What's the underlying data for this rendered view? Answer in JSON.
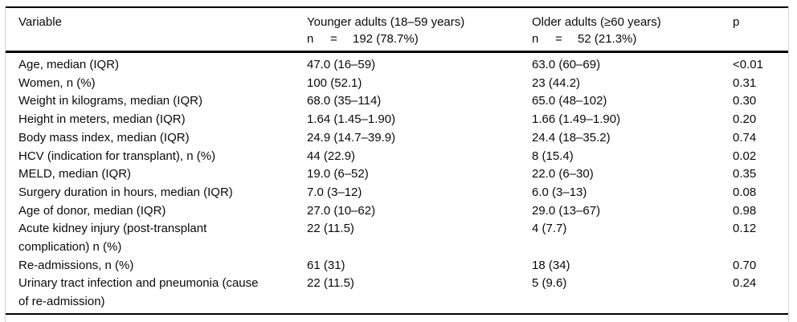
{
  "page": {
    "background_color": "#ffffff",
    "rule_color": "#000000",
    "frame_edge_color": "#d4d4d4",
    "text_color": "#0a0a0a"
  },
  "table": {
    "header": {
      "variable_label": "Variable",
      "younger": {
        "label": "Younger adults (18–59 years)",
        "n_label": "n",
        "equals": "=",
        "n_value": "192 (78.7%)"
      },
      "older": {
        "label": "Older adults (≥60 years)",
        "n_label": "n",
        "equals": "=",
        "n_value": "52 (21.3%)"
      },
      "p_label": "p"
    },
    "rows": [
      {
        "variable": "Age, median (IQR)",
        "younger": "47.0 (16–59)",
        "older": "63.0 (60–69)",
        "p": "<0.01"
      },
      {
        "variable": "Women, n (%)",
        "younger": "100 (52.1)",
        "older": "23 (44.2)",
        "p": "0.31"
      },
      {
        "variable": "Weight in kilograms, median (IQR)",
        "younger": "68.0 (35–114)",
        "older": "65.0 (48–102)",
        "p": "0.30"
      },
      {
        "variable": "Height in meters, median (IQR)",
        "younger": "1.64 (1.45–1.90)",
        "older": "1.66 (1.49–1.90)",
        "p": "0.20"
      },
      {
        "variable": "Body mass index, median (IQR)",
        "younger": "24.9 (14.7–39.9)",
        "older": "24.4 (18–35.2)",
        "p": "0.74"
      },
      {
        "variable": "HCV (indication for transplant), n (%)",
        "younger": "44 (22.9)",
        "older": "8 (15.4)",
        "p": "0.02"
      },
      {
        "variable": "MELD, median (IQR)",
        "younger": "19.0 (6–52)",
        "older": "22.0 (6–30)",
        "p": "0.35"
      },
      {
        "variable": "Surgery duration in hours, median (IQR)",
        "younger": "7.0 (3–12)",
        "older": "6.0 (3–13)",
        "p": "0.08"
      },
      {
        "variable": "Age of donor, median (IQR)",
        "younger": "27.0 (10–62)",
        "older": "29.0 (13–67)",
        "p": "0.98"
      },
      {
        "variable": "Acute kidney injury (post-transplant complication) n (%)",
        "younger": "22 (11.5)",
        "older": "4 (7.7)",
        "p": "0.12"
      },
      {
        "variable": "Re-admissions, n (%)",
        "younger": "61 (31)",
        "older": "18 (34)",
        "p": "0.70"
      },
      {
        "variable": "Urinary tract infection and pneumonia (cause of re-admission)",
        "younger": "22 (11.5)",
        "older": "5 (9.6)",
        "p": "0.24"
      }
    ]
  }
}
